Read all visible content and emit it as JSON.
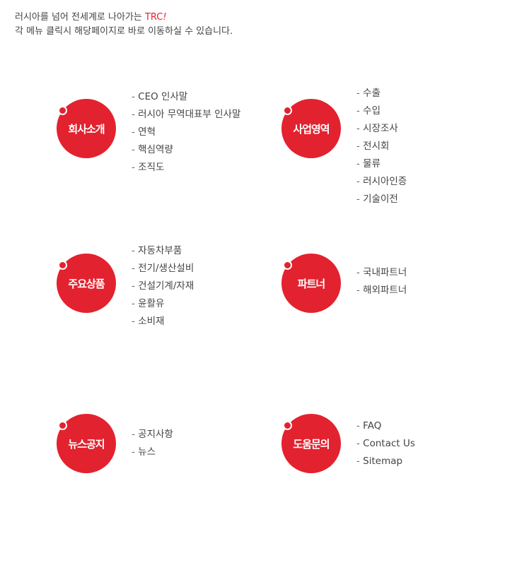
{
  "intro": {
    "line1_prefix": "러시아를 넘어 전세계로 나아가는 ",
    "line1_brand": "TRC",
    "line1_bang": "!",
    "line2": "각 메뉴 클릭시 해당페이지로 바로 이동하실 수 있습니다."
  },
  "sections": [
    {
      "title": "회사소개",
      "items": [
        "CEO 인사말",
        "러시아 무역대표부 인사말",
        "연혁",
        "핵심역량",
        "조직도"
      ]
    },
    {
      "title": "사업영역",
      "items": [
        "수출",
        "수입",
        "시장조사",
        "전시회",
        "물류",
        "러시아인증",
        "기술이전"
      ]
    },
    {
      "title": "주요상품",
      "items": [
        "자동차부품",
        "전기/생산설비",
        "건설기계/자재",
        "윤활유",
        "소비재"
      ]
    },
    {
      "title": "파트너",
      "items": [
        "국내파트너",
        "해외파트너"
      ]
    },
    {
      "title": "뉴스공지",
      "items": [
        "공지사항",
        "뉴스"
      ]
    },
    {
      "title": "도움문의",
      "items": [
        "FAQ",
        "Contact Us",
        "Sitemap"
      ]
    }
  ],
  "colors": {
    "accent": "#e3222f"
  }
}
